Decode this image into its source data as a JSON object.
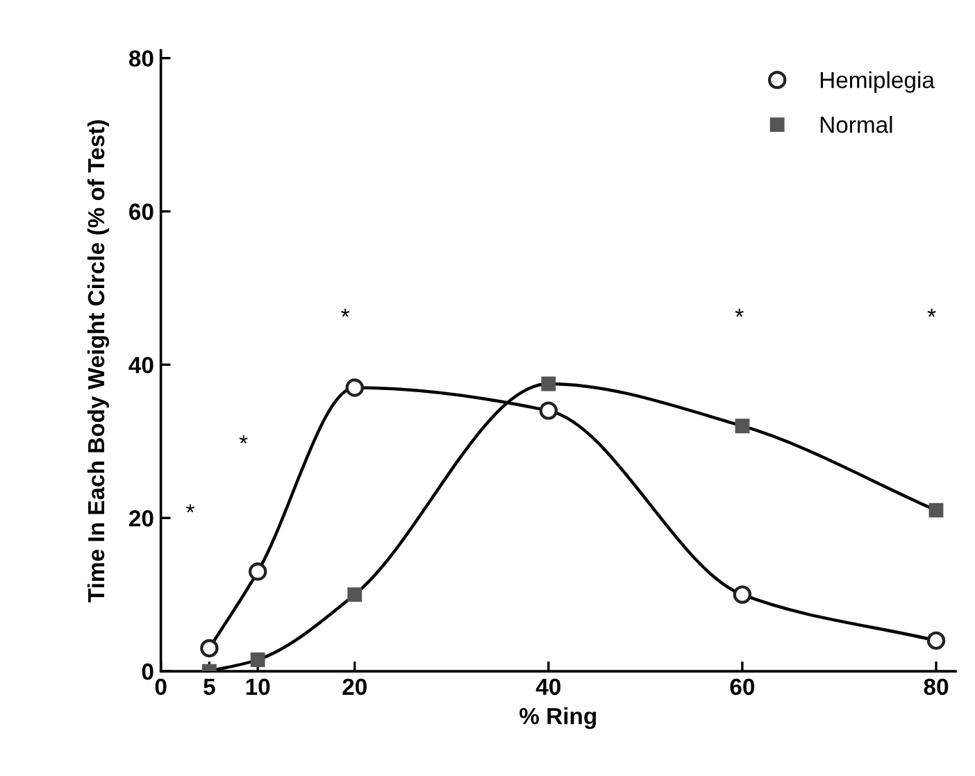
{
  "chart_data": {
    "type": "line",
    "xlabel": "% Ring",
    "ylabel": "Time In Each Body Weight Circle (% of Test)",
    "x": [
      5,
      10,
      20,
      40,
      60,
      80
    ],
    "series": [
      {
        "name": "Hemiplegia",
        "color": "#222222",
        "marker": "circle",
        "values": [
          3,
          13,
          37,
          34,
          10,
          4
        ]
      },
      {
        "name": "Normal",
        "color": "#555555",
        "marker": "square",
        "values": [
          0,
          1.5,
          10,
          37.5,
          32,
          21
        ]
      }
    ],
    "xlim": [
      0,
      82
    ],
    "xticks": [
      0,
      5,
      10,
      20,
      40,
      60,
      80
    ],
    "ylim": [
      0,
      81
    ],
    "yticks": [
      0,
      20,
      40,
      60,
      80
    ],
    "grid": false,
    "legend": "top right",
    "line_style": "solid",
    "annotations": [
      "*",
      "*",
      "*",
      "*",
      "*"
    ]
  }
}
